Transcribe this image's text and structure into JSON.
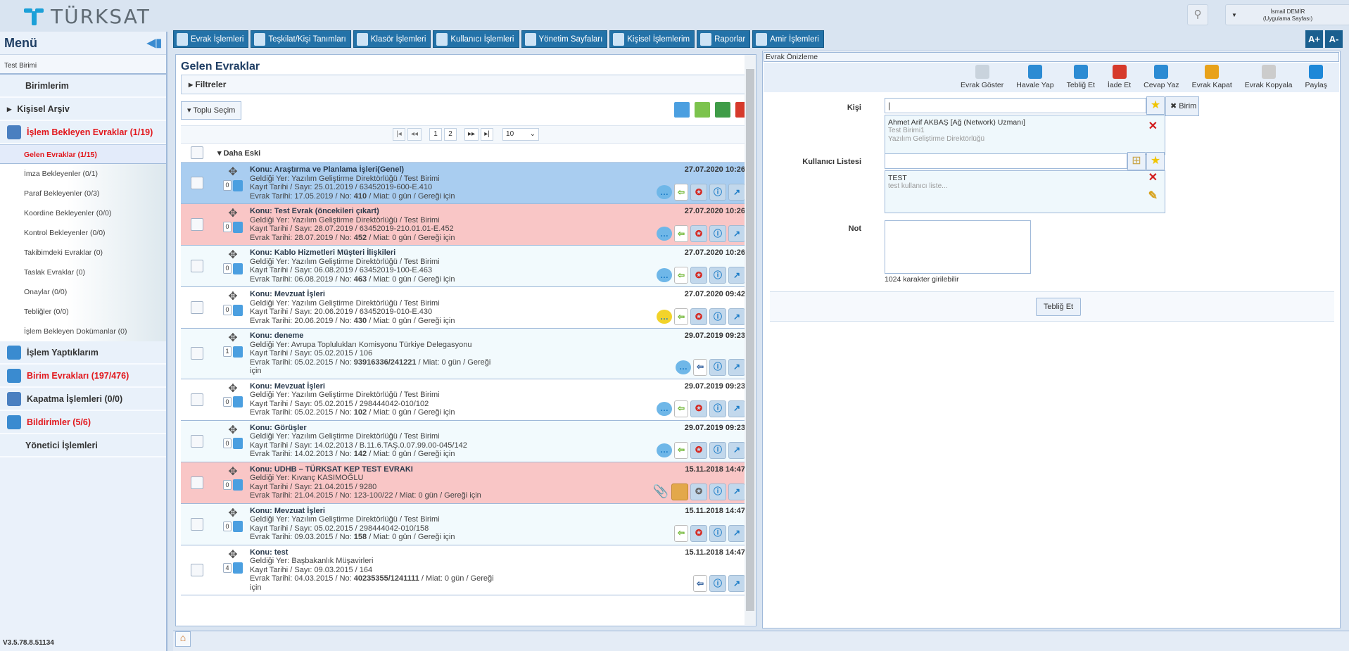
{
  "header": {
    "logo_text": "TÜRKSAT",
    "user_name": "İsmail DEMİR",
    "user_role": "(Uygulama Sayfası)"
  },
  "sidebar": {
    "title": "Menü",
    "unit": "Test Birimi",
    "version": "V3.5.78.8.51134",
    "items": [
      {
        "label": "Birimlerim",
        "red": false
      },
      {
        "label": "Kişisel Arşiv",
        "red": false
      },
      {
        "label": "İşlem Bekleyen Evraklar (1/19)",
        "red": true
      }
    ],
    "sub": [
      "Gelen Evraklar (1/15)",
      "İmza Bekleyenler (0/1)",
      "Paraf Bekleyenler (0/3)",
      "Koordine Bekleyenler (0/0)",
      "Kontrol Bekleyenler (0/0)",
      "Takibimdeki Evraklar (0)",
      "Taslak Evraklar (0)",
      "Onaylar (0/0)",
      "Tebliğler (0/0)",
      "İşlem Bekleyen Dokümanlar (0)"
    ],
    "items2": [
      {
        "label": "İşlem Yaptıklarım",
        "red": false
      },
      {
        "label": "Birim Evrakları (197/476)",
        "red": true
      },
      {
        "label": "Kapatma İşlemleri (0/0)",
        "red": false
      },
      {
        "label": "Bildirimler (5/6)",
        "red": true
      },
      {
        "label": "Yönetici İşlemleri",
        "red": false
      }
    ]
  },
  "nav": {
    "tabs": [
      "Evrak İşlemleri",
      "Teşkilat/Kişi Tanımları",
      "Klasör İşlemleri",
      "Kullanıcı İşlemleri",
      "Yönetim Sayfaları",
      "Kişisel İşlemlerim",
      "Raporlar",
      "Amir İşlemleri"
    ],
    "font_up": "A+",
    "font_down": "A-"
  },
  "list": {
    "title": "Gelen Evraklar",
    "filters": "Filtreler",
    "bulk_select": "Toplu Seçim",
    "group": "Daha Eski",
    "pager": {
      "first": "|◂",
      "prev": "◂◂",
      "pages": [
        "1",
        "2"
      ],
      "current": "1",
      "next": "▸▸",
      "last": "▸|",
      "page_size": "10"
    },
    "rows": [
      {
        "style": "blue",
        "konu": "Konu: Araştırma ve Planlama İşleri(Genel)",
        "yer": "Geldiği Yer: Yazılım Geliştirme Direktörlüğü / Test Birimi",
        "kayit": "Kayıt Tarihi / Sayı: 25.01.2019 / 63452019-600-E.410",
        "evrak_pre": "Evrak Tarihi: 17.05.2019 / No: ",
        "no": "410",
        "evrak_post": " / Miat: 0 gün / Gereği için",
        "date": "27.07.2020 10:26",
        "count": "0",
        "actions": [
          "bubble",
          "doc",
          "medal",
          "info",
          "open"
        ]
      },
      {
        "style": "pink",
        "konu": "Konu: Test Evrak (öncekileri çıkart)",
        "yer": "Geldiği Yer: Yazılım Geliştirme Direktörlüğü / Test Birimi",
        "kayit": "Kayıt Tarihi / Sayı: 28.07.2019 / 63452019-210.01.01-E.452",
        "evrak_pre": "Evrak Tarihi: 28.07.2019 / No: ",
        "no": "452",
        "evrak_post": " / Miat: 0 gün / Gereği için",
        "date": "27.07.2020 10:26",
        "count": "0",
        "actions": [
          "bubble",
          "doc",
          "medal",
          "info",
          "open"
        ]
      },
      {
        "style": "light",
        "konu": "Konu: Kablo Hizmetleri Müşteri İlişkileri",
        "yer": "Geldiği Yer: Yazılım Geliştirme Direktörlüğü / Test Birimi",
        "kayit": "Kayıt Tarihi / Sayı: 06.08.2019 / 63452019-100-E.463",
        "evrak_pre": "Evrak Tarihi: 06.08.2019 / No: ",
        "no": "463",
        "evrak_post": " / Miat: 0 gün / Gereği için",
        "date": "27.07.2020 10:26",
        "count": "0",
        "actions": [
          "bubble",
          "doc",
          "medal",
          "info",
          "open"
        ]
      },
      {
        "style": "white",
        "konu": "Konu: Mevzuat İşleri",
        "yer": "Geldiği Yer: Yazılım Geliştirme Direktörlüğü / Test Birimi",
        "kayit": "Kayıt Tarihi / Sayı: 20.06.2019 / 63452019-010-E.430",
        "evrak_pre": "Evrak Tarihi: 20.06.2019 / No: ",
        "no": "430",
        "evrak_post": " / Miat: 0 gün / Gereği için",
        "date": "27.07.2020 09:42",
        "count": "0",
        "actions": [
          "bubble-yellow",
          "doc",
          "medal",
          "info",
          "open"
        ]
      },
      {
        "style": "light",
        "konu": "Konu: deneme",
        "yer": "Geldiği Yer: Avrupa Toplulukları Komisyonu Türkiye Delegasyonu",
        "kayit": "Kayıt Tarihi / Sayı: 05.02.2015 / 106",
        "evrak_pre": "Evrak Tarihi: 05.02.2015 / No: ",
        "no": "93916336/241221",
        "evrak_post": " / Miat: 0 gün / Gereği için",
        "date": "29.07.2019 09:23",
        "count": "1",
        "actions": [
          "bubble",
          "doc-back",
          "info",
          "open"
        ]
      },
      {
        "style": "white",
        "konu": "Konu: Mevzuat İşleri",
        "yer": "Geldiği Yer: Yazılım Geliştirme Direktörlüğü / Test Birimi",
        "kayit": "Kayıt Tarihi / Sayı: 05.02.2015 / 298444042-010/102",
        "evrak_pre": "Evrak Tarihi: 05.02.2015 / No: ",
        "no": "102",
        "evrak_post": " / Miat: 0 gün / Gereği için",
        "date": "29.07.2019 09:23",
        "count": "0",
        "actions": [
          "bubble",
          "doc",
          "medal",
          "info",
          "open"
        ]
      },
      {
        "style": "light",
        "konu": "Konu: Görüşler",
        "yer": "Geldiği Yer: Yazılım Geliştirme Direktörlüğü / Test Birimi",
        "kayit": "Kayıt Tarihi / Sayı: 14.02.2013 / B.11.6.TAŞ.0.07.99.00-045/142",
        "evrak_pre": "Evrak Tarihi: 14.02.2013 / No: ",
        "no": "142",
        "evrak_post": " / Miat: 0 gün / Gereği için",
        "date": "29.07.2019 09:23",
        "count": "0",
        "actions": [
          "bubble",
          "doc",
          "medal",
          "info",
          "open"
        ]
      },
      {
        "style": "pink",
        "konu": "Konu: UDHB – TÜRKSAT KEP TEST EVRAKI",
        "yer": "Geldiği Yer: Kıvanç KASIMOĞLU",
        "kayit": "Kayıt Tarihi / Sayı: 21.04.2015 / 9280",
        "evrak_pre": "Evrak Tarihi: 21.04.2015 / No: 123-100/22 / Miat: 0 gün / Gereği için",
        "no": "",
        "evrak_post": "",
        "date": "15.11.2018 14:47",
        "count": "0",
        "actions": [
          "clip",
          "box",
          "medal-grey",
          "info",
          "open"
        ]
      },
      {
        "style": "light",
        "konu": "Konu: Mevzuat İşleri",
        "yer": "Geldiği Yer: Yazılım Geliştirme Direktörlüğü / Test Birimi",
        "kayit": "Kayıt Tarihi / Sayı: 05.02.2015 / 298444042-010/158",
        "evrak_pre": "Evrak Tarihi: 09.03.2015 / No: ",
        "no": "158",
        "evrak_post": " / Miat: 0 gün / Gereği için",
        "date": "15.11.2018 14:47",
        "count": "0",
        "actions": [
          "doc",
          "medal",
          "info",
          "open"
        ]
      },
      {
        "style": "white",
        "konu": "Konu: test",
        "yer": "Geldiği Yer: Başbakanlık Müşavirleri",
        "kayit": "Kayıt Tarihi / Sayı: 09.03.2015 / 164",
        "evrak_pre": "Evrak Tarihi: 04.03.2015 / No: ",
        "no": "40235355/1241111",
        "evrak_post": " / Miat: 0 gün / Gereği için",
        "date": "15.11.2018 14:47",
        "count": "4",
        "actions": [
          "doc-back",
          "info",
          "open"
        ]
      }
    ]
  },
  "preview": {
    "title": "Evrak Önizleme",
    "actions": [
      "Evrak Göster",
      "Havale Yap",
      "Tebliğ Et",
      "İade Et",
      "Cevap Yaz",
      "Evrak Kapat",
      "Evrak Kopyala",
      "Paylaş"
    ],
    "kisi_label": "Kişi",
    "birim_button": "Birim",
    "kisi_selected": {
      "name": "Ahmet Arif AKBAŞ [Ağ (Network) Uzmanı]",
      "unit": "Test Birimi1",
      "dept": "Yazılım Geliştirme Direktörlüğü"
    },
    "kullanici_label": "Kullanıcı Listesi",
    "liste_selected": {
      "name": "TEST",
      "desc": "test kullanıcı liste..."
    },
    "not_label": "Not",
    "char_hint": "1024 karakter girilebilir",
    "submit": "Tebliğ Et"
  }
}
